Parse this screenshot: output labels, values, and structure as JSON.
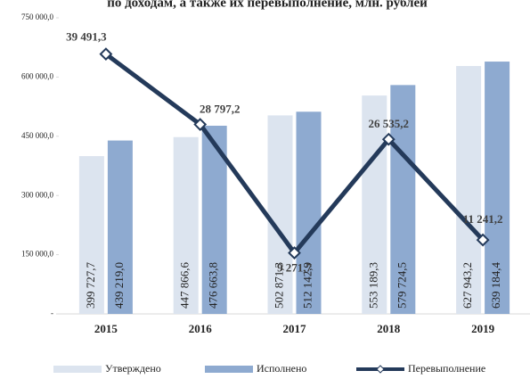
{
  "chart_data": {
    "type": "bar",
    "title": "по доходам, а также их перевыполнение, млн. рублей",
    "categories": [
      "2015",
      "2016",
      "2017",
      "2018",
      "2019"
    ],
    "series": [
      {
        "name": "Утверждено",
        "color": "#dce4ef",
        "values": [
          399727.7,
          447866.6,
          502871.3,
          553189.3,
          627943.2
        ],
        "value_labels": [
          "399 727,7",
          "447 866,6",
          "502 871,3",
          "553 189,3",
          "627 943,2"
        ]
      },
      {
        "name": "Исполнено",
        "color": "#8eaad0",
        "values": [
          439219.0,
          476663.8,
          512142.9,
          579724.5,
          639184.4
        ],
        "value_labels": [
          "439 219,0",
          "476 663,8",
          "512 142,9",
          "579 724,5",
          "639 184,4"
        ]
      },
      {
        "name": "Перевыполнение",
        "color": "#243a5a",
        "type": "line",
        "axis": "y2",
        "values": [
          39491.3,
          28797.2,
          9271.7,
          26535.2,
          11241.2
        ],
        "value_labels": [
          "39 491,3",
          "28 797,2",
          "9 271,7",
          "26 535,2",
          "11 241,2"
        ]
      }
    ],
    "ylim": [
      0,
      750000
    ],
    "yticks": [
      {
        "value": 0,
        "label": "-"
      },
      {
        "value": 150000,
        "label": "150 000,0"
      },
      {
        "value": 300000,
        "label": "300 000,0"
      },
      {
        "value": 450000,
        "label": "450 000,0"
      },
      {
        "value": 600000,
        "label": "600 000,0"
      },
      {
        "value": 750000,
        "label": "750 000,0"
      }
    ],
    "y2lim": [
      0,
      45000
    ],
    "legend": "bottom"
  }
}
